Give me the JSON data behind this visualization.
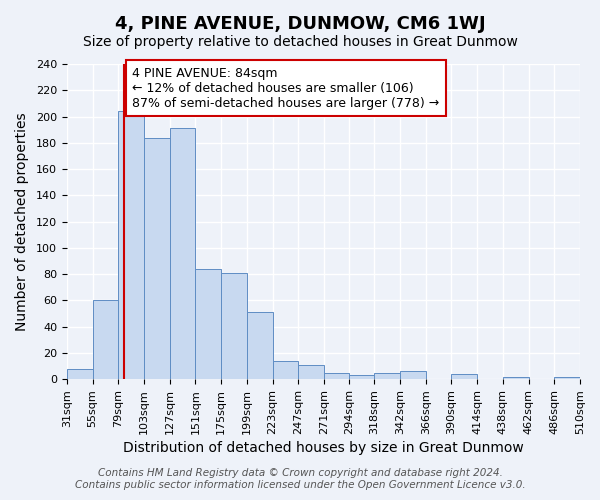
{
  "title": "4, PINE AVENUE, DUNMOW, CM6 1WJ",
  "subtitle": "Size of property relative to detached houses in Great Dunmow",
  "xlabel": "Distribution of detached houses by size in Great Dunmow",
  "ylabel": "Number of detached properties",
  "bar_values": [
    8,
    60,
    204,
    184,
    191,
    84,
    81,
    51,
    14,
    11,
    5,
    3,
    5,
    6,
    0,
    4,
    0,
    2,
    0,
    2
  ],
  "bin_edges": [
    31,
    55,
    79,
    103,
    127,
    151,
    175,
    199,
    223,
    247,
    271,
    294,
    318,
    342,
    366,
    390,
    414,
    438,
    462,
    486,
    510
  ],
  "tick_labels": [
    "31sqm",
    "55sqm",
    "79sqm",
    "103sqm",
    "127sqm",
    "151sqm",
    "175sqm",
    "199sqm",
    "223sqm",
    "247sqm",
    "271sqm",
    "294sqm",
    "318sqm",
    "342sqm",
    "366sqm",
    "390sqm",
    "414sqm",
    "438sqm",
    "462sqm",
    "486sqm",
    "510sqm"
  ],
  "bar_color": "#c8d9f0",
  "bar_edge_color": "#5f8dc4",
  "red_line_x": 84,
  "ylim": [
    0,
    240
  ],
  "yticks": [
    0,
    20,
    40,
    60,
    80,
    100,
    120,
    140,
    160,
    180,
    200,
    220,
    240
  ],
  "annotation_text": "4 PINE AVENUE: 84sqm\n← 12% of detached houses are smaller (106)\n87% of semi-detached houses are larger (778) →",
  "annotation_box_color": "white",
  "annotation_box_edge": "#cc0000",
  "footer_line1": "Contains HM Land Registry data © Crown copyright and database right 2024.",
  "footer_line2": "Contains public sector information licensed under the Open Government Licence v3.0.",
  "background_color": "#eef2f9",
  "grid_color": "white",
  "title_fontsize": 13,
  "subtitle_fontsize": 10,
  "axis_label_fontsize": 10,
  "tick_fontsize": 8,
  "annotation_fontsize": 9,
  "footer_fontsize": 7.5
}
